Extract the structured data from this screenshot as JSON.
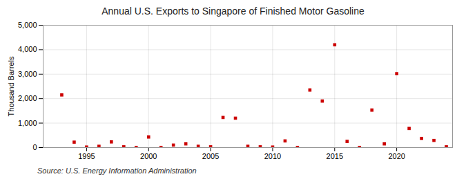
{
  "chart_data": {
    "type": "scatter",
    "title": "Annual U.S. Exports to Singapore of Finished Motor Gasoline",
    "ylabel": "Thousand Barrels",
    "source": "Source: U.S. Energy Information Administration",
    "x": [
      1993,
      1994,
      1995,
      1996,
      1997,
      1998,
      1999,
      2000,
      2001,
      2002,
      2003,
      2004,
      2005,
      2006,
      2007,
      2008,
      2009,
      2010,
      2011,
      2012,
      2013,
      2014,
      2015,
      2016,
      2017,
      2018,
      2019,
      2020,
      2021,
      2022,
      2023,
      2024
    ],
    "values": [
      2150,
      220,
      20,
      50,
      230,
      30,
      0,
      430,
      0,
      100,
      150,
      50,
      30,
      1230,
      1200,
      50,
      30,
      20,
      270,
      0,
      2350,
      1900,
      4200,
      250,
      0,
      1530,
      150,
      3020,
      780,
      370,
      290,
      30
    ],
    "color": "#cc0000",
    "marker": "square",
    "xlim": [
      1991.5,
      2024.5
    ],
    "xticks": [
      1995,
      2000,
      2005,
      2010,
      2015,
      2020
    ],
    "ylim": [
      0,
      5000
    ],
    "yticks": [
      0,
      {
        "value": 1000,
        "label": "1,000"
      },
      {
        "value": 2000,
        "label": "2,000"
      },
      {
        "value": 3000,
        "label": "3,000"
      },
      {
        "value": 4000,
        "label": "4,000"
      },
      {
        "value": 5000,
        "label": "5,000"
      }
    ],
    "grid": true
  }
}
